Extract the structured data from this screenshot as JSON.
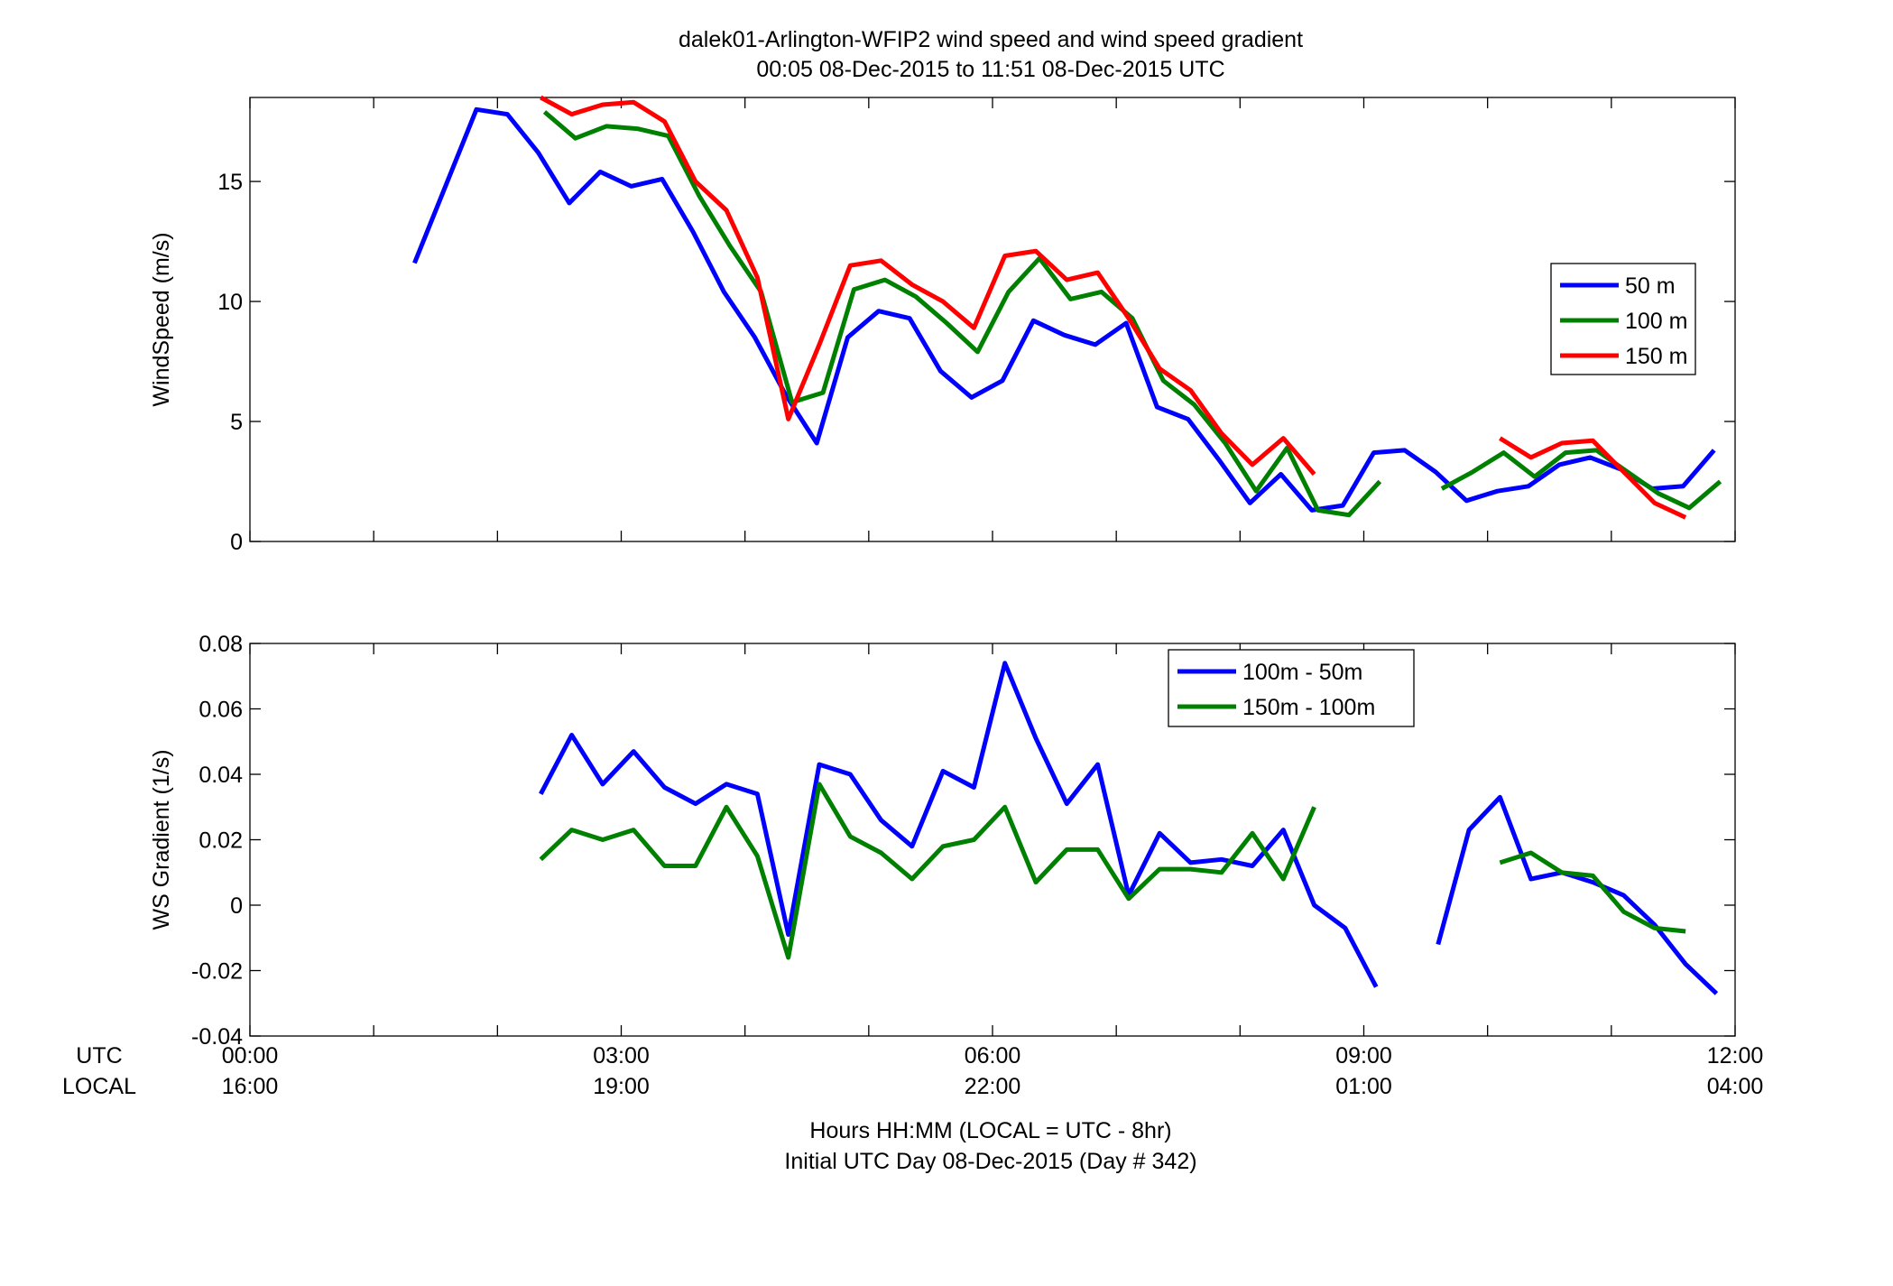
{
  "figure": {
    "title_line1": "dalek01-Arlington-WFIP2  wind speed and wind speed gradient",
    "title_line2": "00:05 08-Dec-2015 to 11:51 08-Dec-2015  UTC",
    "xlabel_line1": "Hours HH:MM  (LOCAL = UTC - 8hr)",
    "xlabel_line2": "Initial UTC Day 08-Dec-2015 (Day # 342)",
    "row_label_utc": "UTC",
    "row_label_local": "LOCAL",
    "x_ticks_utc": [
      "00:00",
      "03:00",
      "06:00",
      "09:00",
      "12:00"
    ],
    "x_ticks_local": [
      "16:00",
      "19:00",
      "22:00",
      "01:00",
      "04:00"
    ]
  },
  "chart_data": [
    {
      "type": "line",
      "ylabel": "WindSpeed (m/s)",
      "xlabel": "Hours HH:MM  (LOCAL = UTC - 8hr)",
      "xlim": [
        0,
        12
      ],
      "ylim": [
        0,
        18.5
      ],
      "yticks": [
        0,
        5,
        10,
        15
      ],
      "ytick_labels": [
        "0",
        "5",
        "10",
        "15"
      ],
      "legend_position": "right",
      "grid": false,
      "series": [
        {
          "name": "50 m",
          "color": "#0000ff",
          "points": [
            [
              1.33,
              11.6
            ],
            [
              1.83,
              18.0
            ],
            [
              2.08,
              17.8
            ],
            [
              2.33,
              16.2
            ],
            [
              2.58,
              14.1
            ],
            [
              2.83,
              15.4
            ],
            [
              3.08,
              14.8
            ],
            [
              3.33,
              15.1
            ],
            [
              3.58,
              12.9
            ],
            [
              3.83,
              10.4
            ],
            [
              4.08,
              8.5
            ],
            [
              4.33,
              6.1
            ],
            [
              4.58,
              4.1
            ],
            [
              4.83,
              8.5
            ],
            [
              5.08,
              9.6
            ],
            [
              5.33,
              9.3
            ],
            [
              5.58,
              7.1
            ],
            [
              5.83,
              6.0
            ],
            [
              6.08,
              6.7
            ],
            [
              6.33,
              9.2
            ],
            [
              6.58,
              8.6
            ],
            [
              6.83,
              8.2
            ],
            [
              7.08,
              9.1
            ],
            [
              7.33,
              5.6
            ],
            [
              7.58,
              5.1
            ],
            [
              7.83,
              3.4
            ],
            [
              8.08,
              1.6
            ],
            [
              8.33,
              2.8
            ],
            [
              8.58,
              1.3
            ],
            [
              8.83,
              1.5
            ],
            [
              9.08,
              3.7
            ],
            [
              9.33,
              3.8
            ],
            [
              9.58,
              2.9
            ],
            [
              9.83,
              1.7
            ],
            [
              10.08,
              2.1
            ],
            [
              10.33,
              2.3
            ],
            [
              10.58,
              3.2
            ],
            [
              10.83,
              3.5
            ],
            [
              11.08,
              3.0
            ],
            [
              11.33,
              2.2
            ],
            [
              11.58,
              2.3
            ],
            [
              11.83,
              3.8
            ]
          ]
        },
        {
          "name": "100 m",
          "color": "#008000",
          "points": [
            [
              2.38,
              17.9
            ],
            [
              2.63,
              16.8
            ],
            [
              2.88,
              17.3
            ],
            [
              3.13,
              17.2
            ],
            [
              3.38,
              16.9
            ],
            [
              3.63,
              14.4
            ],
            [
              3.88,
              12.3
            ],
            [
              4.13,
              10.4
            ],
            [
              4.38,
              5.8
            ],
            [
              4.63,
              6.2
            ],
            [
              4.88,
              10.5
            ],
            [
              5.13,
              10.9
            ],
            [
              5.38,
              10.2
            ],
            [
              5.63,
              9.1
            ],
            [
              5.88,
              7.9
            ],
            [
              6.13,
              10.4
            ],
            [
              6.38,
              11.8
            ],
            [
              6.63,
              10.1
            ],
            [
              6.88,
              10.4
            ],
            [
              7.13,
              9.3
            ],
            [
              7.38,
              6.7
            ],
            [
              7.63,
              5.7
            ],
            [
              7.88,
              4.1
            ],
            [
              8.13,
              2.1
            ],
            [
              8.38,
              3.9
            ],
            [
              8.63,
              1.3
            ],
            [
              8.88,
              1.1
            ],
            [
              9.13,
              2.5
            ],
            [
              null,
              null
            ],
            [
              9.63,
              2.2
            ],
            [
              9.88,
              2.9
            ],
            [
              10.13,
              3.7
            ],
            [
              10.38,
              2.7
            ],
            [
              10.63,
              3.7
            ],
            [
              10.88,
              3.8
            ],
            [
              11.13,
              2.9
            ],
            [
              11.38,
              2.0
            ],
            [
              11.63,
              1.4
            ],
            [
              11.88,
              2.5
            ]
          ]
        },
        {
          "name": "150 m",
          "color": "#ff0000",
          "points": [
            [
              2.35,
              18.5
            ],
            [
              2.6,
              17.8
            ],
            [
              2.85,
              18.2
            ],
            [
              3.1,
              18.3
            ],
            [
              3.35,
              17.5
            ],
            [
              3.6,
              15.0
            ],
            [
              3.85,
              13.8
            ],
            [
              4.1,
              11.0
            ],
            [
              4.35,
              5.1
            ],
            [
              4.6,
              8.2
            ],
            [
              4.85,
              11.5
            ],
            [
              5.1,
              11.7
            ],
            [
              5.35,
              10.7
            ],
            [
              5.6,
              10.0
            ],
            [
              5.85,
              8.9
            ],
            [
              6.1,
              11.9
            ],
            [
              6.35,
              12.1
            ],
            [
              6.6,
              10.9
            ],
            [
              6.85,
              11.2
            ],
            [
              7.1,
              9.3
            ],
            [
              7.35,
              7.2
            ],
            [
              7.6,
              6.3
            ],
            [
              7.85,
              4.5
            ],
            [
              8.1,
              3.2
            ],
            [
              8.35,
              4.3
            ],
            [
              8.6,
              2.8
            ],
            [
              null,
              null
            ],
            [
              10.1,
              4.3
            ],
            [
              10.35,
              3.5
            ],
            [
              10.6,
              4.1
            ],
            [
              10.85,
              4.2
            ],
            [
              11.1,
              2.9
            ],
            [
              11.35,
              1.6
            ],
            [
              11.6,
              1.0
            ]
          ]
        }
      ]
    },
    {
      "type": "line",
      "ylabel": "WS Gradient (1/s)",
      "xlabel": "Hours HH:MM  (LOCAL = UTC - 8hr)",
      "xlim": [
        0,
        12
      ],
      "ylim": [
        -0.04,
        0.08
      ],
      "yticks": [
        -0.04,
        -0.02,
        0,
        0.02,
        0.04,
        0.06,
        0.08
      ],
      "ytick_labels": [
        "-0.04",
        "-0.02",
        "0",
        "0.02",
        "0.04",
        "0.06",
        "0.08"
      ],
      "legend_position": "top-right",
      "grid": false,
      "series": [
        {
          "name": "100m - 50m",
          "color": "#0000ff",
          "points": [
            [
              2.35,
              0.034
            ],
            [
              2.6,
              0.052
            ],
            [
              2.85,
              0.037
            ],
            [
              3.1,
              0.047
            ],
            [
              3.35,
              0.036
            ],
            [
              3.6,
              0.031
            ],
            [
              3.85,
              0.037
            ],
            [
              4.1,
              0.034
            ],
            [
              4.35,
              -0.009
            ],
            [
              4.6,
              0.043
            ],
            [
              4.85,
              0.04
            ],
            [
              5.1,
              0.026
            ],
            [
              5.35,
              0.018
            ],
            [
              5.6,
              0.041
            ],
            [
              5.85,
              0.036
            ],
            [
              6.1,
              0.074
            ],
            [
              6.35,
              0.051
            ],
            [
              6.6,
              0.031
            ],
            [
              6.85,
              0.043
            ],
            [
              7.1,
              0.003
            ],
            [
              7.35,
              0.022
            ],
            [
              7.6,
              0.013
            ],
            [
              7.85,
              0.014
            ],
            [
              8.1,
              0.012
            ],
            [
              8.35,
              0.023
            ],
            [
              8.6,
              0.0
            ],
            [
              8.85,
              -0.007
            ],
            [
              9.1,
              -0.025
            ],
            [
              null,
              null
            ],
            [
              9.6,
              -0.012
            ],
            [
              9.85,
              0.023
            ],
            [
              10.1,
              0.033
            ],
            [
              10.35,
              0.008
            ],
            [
              10.6,
              0.01
            ],
            [
              10.85,
              0.007
            ],
            [
              11.1,
              0.003
            ],
            [
              11.35,
              -0.006
            ],
            [
              11.6,
              -0.018
            ],
            [
              11.85,
              -0.027
            ]
          ]
        },
        {
          "name": "150m - 100m",
          "color": "#008000",
          "points": [
            [
              2.35,
              0.014
            ],
            [
              2.6,
              0.023
            ],
            [
              2.85,
              0.02
            ],
            [
              3.1,
              0.023
            ],
            [
              3.35,
              0.012
            ],
            [
              3.6,
              0.012
            ],
            [
              3.85,
              0.03
            ],
            [
              4.1,
              0.015
            ],
            [
              4.35,
              -0.016
            ],
            [
              4.6,
              0.037
            ],
            [
              4.85,
              0.021
            ],
            [
              5.1,
              0.016
            ],
            [
              5.35,
              0.008
            ],
            [
              5.6,
              0.018
            ],
            [
              5.85,
              0.02
            ],
            [
              6.1,
              0.03
            ],
            [
              6.35,
              0.007
            ],
            [
              6.6,
              0.017
            ],
            [
              6.85,
              0.017
            ],
            [
              7.1,
              0.002
            ],
            [
              7.35,
              0.011
            ],
            [
              7.6,
              0.011
            ],
            [
              7.85,
              0.01
            ],
            [
              8.1,
              0.022
            ],
            [
              8.35,
              0.008
            ],
            [
              8.6,
              0.03
            ],
            [
              null,
              null
            ],
            [
              10.1,
              0.013
            ],
            [
              10.35,
              0.016
            ],
            [
              10.6,
              0.01
            ],
            [
              10.85,
              0.009
            ],
            [
              11.1,
              -0.002
            ],
            [
              11.35,
              -0.007
            ],
            [
              11.6,
              -0.008
            ]
          ]
        }
      ]
    }
  ]
}
